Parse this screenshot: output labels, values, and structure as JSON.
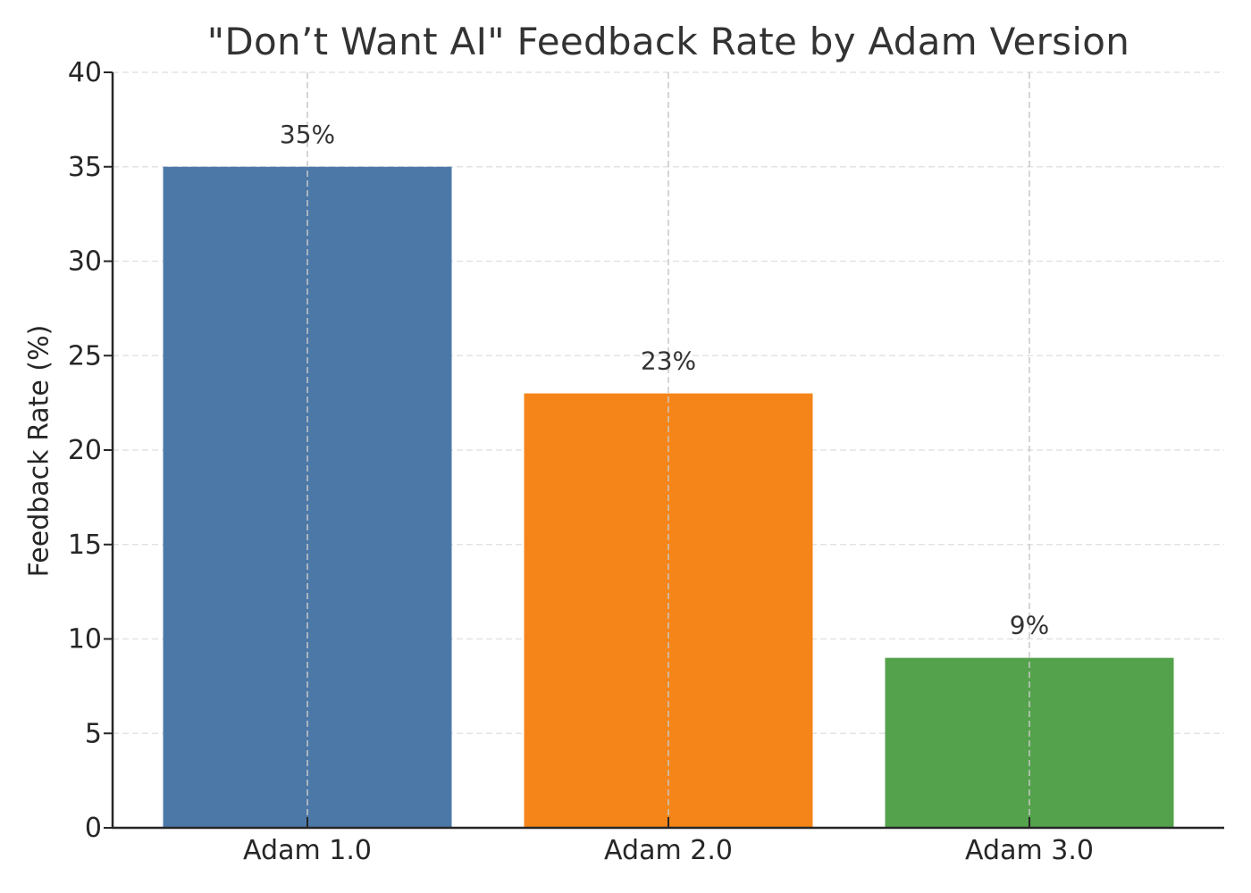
{
  "chart_data": {
    "type": "bar",
    "title": "\"Don’t Want AI\" Feedback Rate by Adam Version",
    "xlabel": "",
    "ylabel": "Feedback Rate (%)",
    "categories": [
      "Adam 1.0",
      "Adam 2.0",
      "Adam 3.0"
    ],
    "values": [
      35,
      23,
      9
    ],
    "data_labels": [
      "35%",
      "23%",
      "9%"
    ],
    "colors": [
      "#4c78a8",
      "#f58518",
      "#54a24b"
    ],
    "ylim": [
      0,
      40
    ],
    "yticks": [
      0,
      5,
      10,
      15,
      20,
      25,
      30,
      35,
      40
    ],
    "grid": true,
    "grid_style": "dashed",
    "legend": null
  }
}
